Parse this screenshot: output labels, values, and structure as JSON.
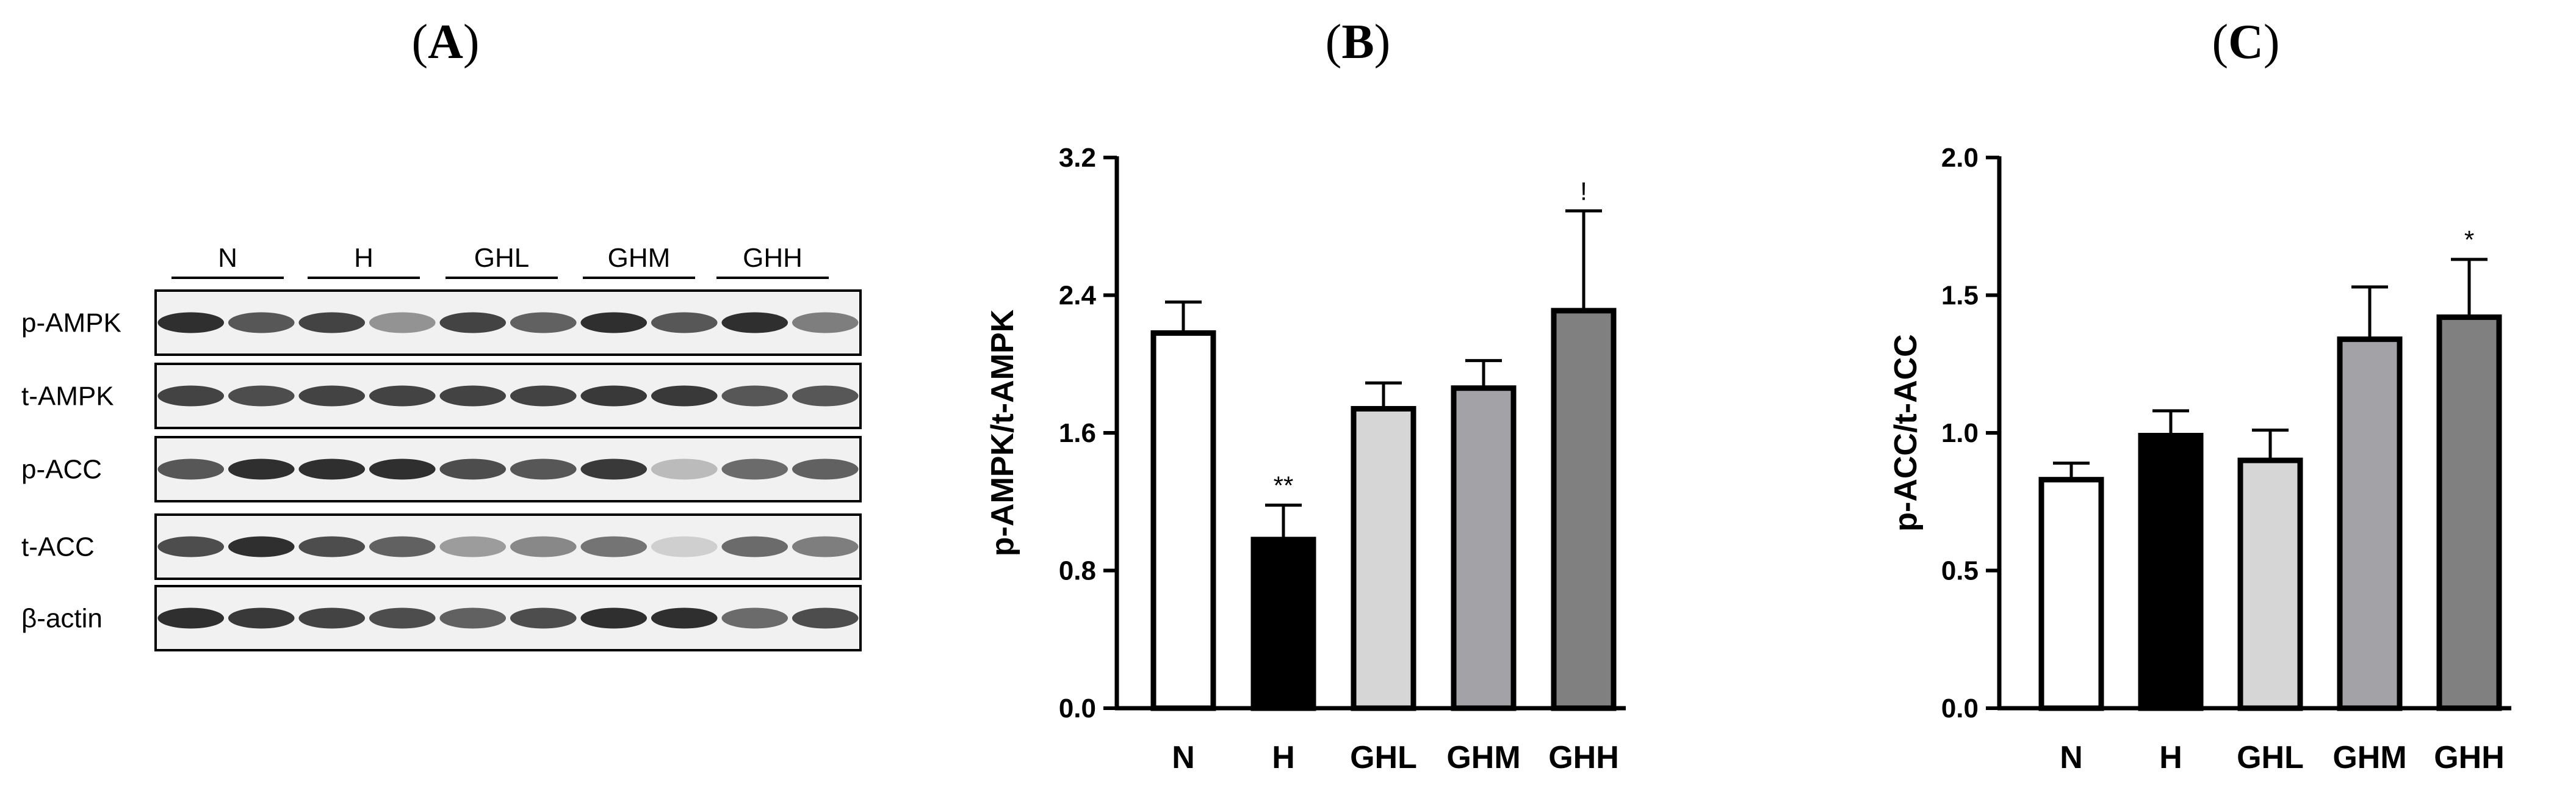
{
  "panels": {
    "a": {
      "label_open": "(",
      "label_letter": "A",
      "label_close": ")"
    },
    "b": {
      "label_open": "(",
      "label_letter": "B",
      "label_close": ")"
    },
    "c": {
      "label_open": "(",
      "label_letter": "C",
      "label_close": ")"
    }
  },
  "blot": {
    "groups": [
      "N",
      "H",
      "GHL",
      "GHM",
      "GHH"
    ],
    "rows": [
      "p-AMPK",
      "t-AMPK",
      "p-ACC",
      "t-ACC",
      "β-actin"
    ],
    "lanes_per_group": 2
  },
  "chart_data": [
    {
      "type": "bar",
      "panel": "B",
      "title": "",
      "categories": [
        "N",
        "H",
        "GHL",
        "GHM",
        "GHH"
      ],
      "values": [
        2.18,
        0.98,
        1.74,
        1.86,
        2.31
      ],
      "errors": [
        0.18,
        0.2,
        0.15,
        0.16,
        0.58
      ],
      "annotations": [
        "",
        "**",
        "",
        "",
        "!"
      ],
      "fill_colors": [
        "#ffffff",
        "#000000",
        "#d6d6d6",
        "#a3a3a7",
        "#808080"
      ],
      "xlabel": "",
      "ylabel": "p-AMPK/t-AMPK",
      "ylim": [
        0,
        3.2
      ],
      "yticks": [
        "0.0",
        "0.8",
        "1.6",
        "2.4",
        "3.2"
      ],
      "ytick_values": [
        0,
        0.8,
        1.6,
        2.4,
        3.2
      ]
    },
    {
      "type": "bar",
      "panel": "C",
      "title": "",
      "categories": [
        "N",
        "H",
        "GHL",
        "GHM",
        "GHH"
      ],
      "values": [
        0.83,
        0.99,
        0.9,
        1.34,
        1.42
      ],
      "errors": [
        0.06,
        0.09,
        0.11,
        0.19,
        0.21
      ],
      "annotations": [
        "",
        "",
        "",
        "",
        "*"
      ],
      "fill_colors": [
        "#ffffff",
        "#000000",
        "#d6d6d6",
        "#a3a3a7",
        "#808080"
      ],
      "xlabel": "",
      "ylabel": "p-ACC/t-ACC",
      "ylim": [
        0,
        2.0
      ],
      "yticks": [
        "0.0",
        "0.5",
        "1.0",
        "1.5",
        "2.0"
      ],
      "ytick_values": [
        0,
        0.5,
        1.0,
        1.5,
        2.0
      ]
    }
  ]
}
